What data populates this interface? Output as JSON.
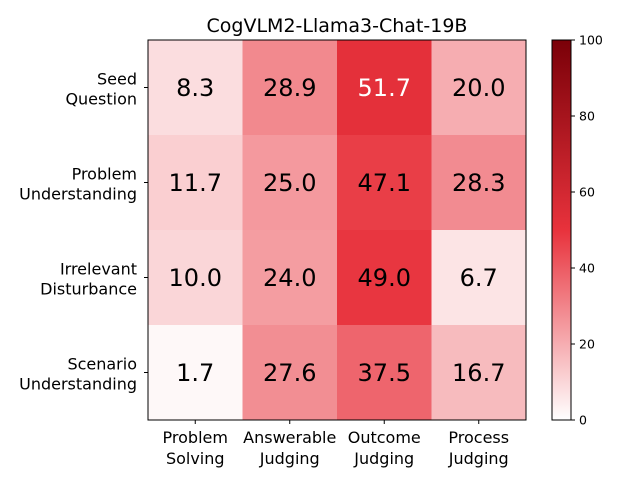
{
  "chart_data": {
    "type": "heatmap",
    "title": "CogVLM2-Llama3-Chat-19B",
    "columns": [
      [
        "Problem",
        "Solving"
      ],
      [
        "Answerable",
        "Judging"
      ],
      [
        "Outcome",
        "Judging"
      ],
      [
        "Process",
        "Judging"
      ]
    ],
    "rows": [
      [
        "Seed",
        "Question"
      ],
      [
        "Problem",
        "Understanding"
      ],
      [
        "Irrelevant",
        "Disturbance"
      ],
      [
        "Scenario",
        "Understanding"
      ]
    ],
    "values": [
      [
        8.3,
        28.9,
        51.7,
        20.0
      ],
      [
        11.7,
        25.0,
        47.1,
        28.3
      ],
      [
        10.0,
        24.0,
        49.0,
        6.7
      ],
      [
        1.7,
        27.6,
        37.5,
        16.7
      ]
    ],
    "value_labels": [
      [
        "8.3",
        "28.9",
        "51.7",
        "20.0"
      ],
      [
        "11.7",
        "25.0",
        "47.1",
        "28.3"
      ],
      [
        "10.0",
        "24.0",
        "49.0",
        "6.7"
      ],
      [
        "1.7",
        "27.6",
        "37.5",
        "16.7"
      ]
    ],
    "colorbar": {
      "range": [
        0,
        100
      ],
      "ticks": [
        0,
        20,
        40,
        60,
        80,
        100
      ],
      "colors": [
        "#ffffff",
        "#e8323c",
        "#7a0008"
      ]
    },
    "text_colors": {
      "light": "#ffffff",
      "dark": "#000000"
    }
  }
}
